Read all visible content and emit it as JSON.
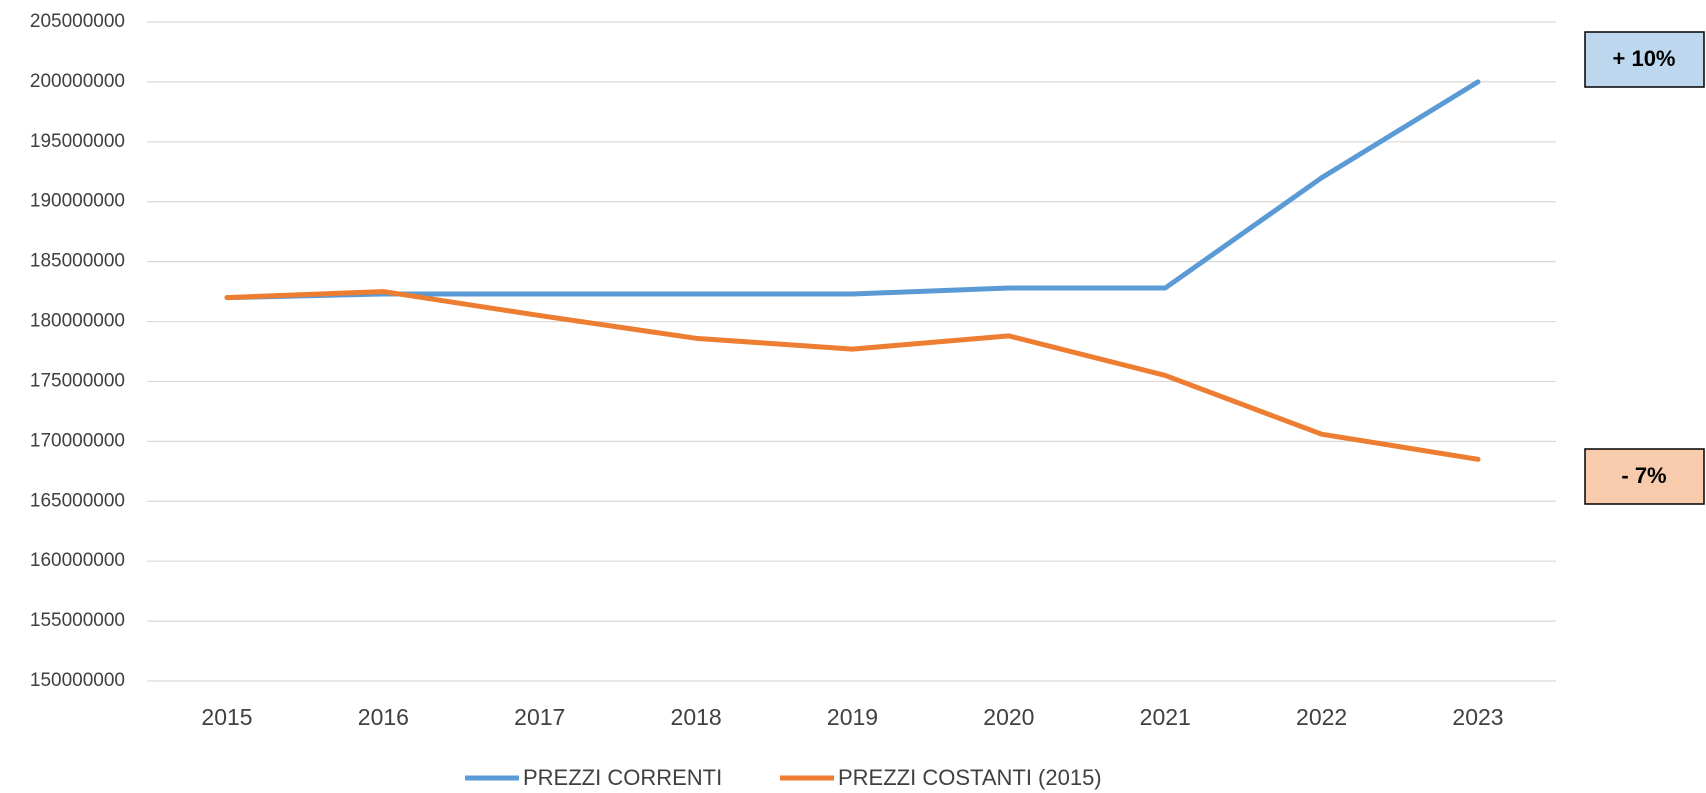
{
  "chart_data": {
    "type": "line",
    "categories": [
      "2015",
      "2016",
      "2017",
      "2018",
      "2019",
      "2020",
      "2021",
      "2022",
      "2023"
    ],
    "series": [
      {
        "name": "PREZZI CORRENTI",
        "color": "#5b9bd5",
        "values": [
          182000000,
          182300000,
          182300000,
          182300000,
          182300000,
          182800000,
          182800000,
          192000000,
          200000000
        ]
      },
      {
        "name": "PREZZI COSTANTI (2015)",
        "color": "#ed7d31",
        "values": [
          182000000,
          182500000,
          180500000,
          178600000,
          177700000,
          178800000,
          175500000,
          170600000,
          168500000
        ]
      }
    ],
    "ylim": [
      150000000,
      205000000
    ],
    "yticks": [
      150000000,
      155000000,
      160000000,
      165000000,
      170000000,
      175000000,
      180000000,
      185000000,
      190000000,
      195000000,
      200000000,
      205000000
    ],
    "grid": true,
    "legend": "bottom",
    "annotations": [
      {
        "text": "+ 10%",
        "color": "#bdd7ee"
      },
      {
        "text": "- 7%",
        "color": "#f8cbad"
      }
    ]
  }
}
